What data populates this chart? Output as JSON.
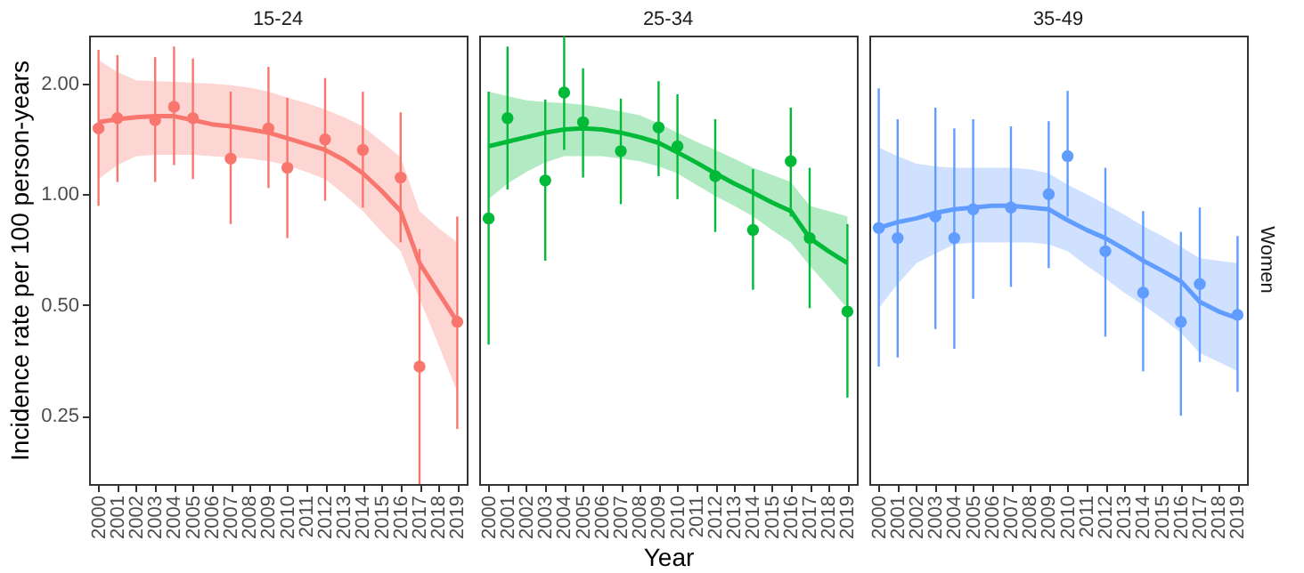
{
  "chart_data": [
    {
      "type": "scatter",
      "title": "15-24",
      "ylabel": "Incidence rate per 100 person-years",
      "log": "y",
      "categories": [
        "2000",
        "2001",
        "2002",
        "2003",
        "2004",
        "2005",
        "2006",
        "2007",
        "2008",
        "2009",
        "2010",
        "2011",
        "2012",
        "2013",
        "2014",
        "2015",
        "2016",
        "2017",
        "2018",
        "2019"
      ],
      "ylim": [
        0.163,
        2.7
      ],
      "yticks": [
        0.25,
        {
          "value": 0.5,
          "label": "0.50"
        },
        {
          "value": 1,
          "label": "1.00"
        },
        {
          "value": 2,
          "label": "2.00"
        }
      ],
      "series": [
        {
          "marker": "circle",
          "color": "#f8766d",
          "values": [
            1.51,
            1.61,
            null,
            1.59,
            1.73,
            1.61,
            null,
            1.25,
            null,
            1.51,
            1.18,
            null,
            1.41,
            null,
            1.32,
            null,
            1.11,
            0.34,
            null,
            0.45
          ],
          "errors": [
            [
              0.93,
              2.47
            ],
            [
              1.08,
              2.39
            ],
            null,
            [
              1.08,
              2.36
            ],
            [
              1.2,
              2.52
            ],
            [
              1.1,
              2.34
            ],
            null,
            [
              0.83,
              1.9
            ],
            null,
            [
              1.04,
              2.22
            ],
            [
              0.76,
              1.83
            ],
            null,
            [
              0.96,
              2.07
            ],
            null,
            [
              0.92,
              1.9
            ],
            null,
            [
              0.74,
              1.67
            ],
            [
              0.163,
              0.71
            ],
            null,
            [
              0.23,
              0.87
            ]
          ]
        },
        {
          "type": "line",
          "marker": "none",
          "color": "#f8766d",
          "values": [
            1.57,
            1.6,
            1.62,
            1.63,
            1.63,
            1.59,
            1.55,
            1.53,
            1.5,
            1.47,
            1.42,
            1.37,
            1.32,
            1.24,
            1.14,
            1.02,
            0.9,
            0.65,
            0.54,
            0.45
          ],
          "lower": [
            1.1,
            1.2,
            1.27,
            1.28,
            1.28,
            1.28,
            1.27,
            1.26,
            1.25,
            1.23,
            1.2,
            1.15,
            1.1,
            1.0,
            0.9,
            0.79,
            0.7,
            0.52,
            0.39,
            0.29
          ],
          "upper": [
            2.32,
            2.15,
            2.04,
            2.03,
            2.02,
            2.01,
            2.0,
            1.98,
            1.95,
            1.9,
            1.83,
            1.77,
            1.7,
            1.62,
            1.53,
            1.39,
            1.26,
            0.9,
            0.81,
            0.74
          ]
        }
      ]
    },
    {
      "type": "scatter",
      "title": "25-34",
      "xlabel": "Year",
      "log": "y",
      "tick_labels": "x",
      "categories": [
        "2000",
        "2001",
        "2002",
        "2003",
        "2004",
        "2005",
        "2006",
        "2007",
        "2008",
        "2009",
        "2010",
        "2011",
        "2012",
        "2013",
        "2014",
        "2015",
        "2016",
        "2017",
        "2018",
        "2019"
      ],
      "ylim": [
        0.163,
        2.7
      ],
      "series": [
        {
          "marker": "circle",
          "color": "#00ba38",
          "values": [
            0.86,
            1.61,
            null,
            1.09,
            1.89,
            1.57,
            null,
            1.31,
            null,
            1.52,
            1.35,
            null,
            1.12,
            null,
            0.8,
            null,
            1.23,
            0.76,
            null,
            0.48
          ],
          "errors": [
            [
              0.39,
              1.9
            ],
            [
              1.03,
              2.52
            ],
            null,
            [
              0.66,
              1.81
            ],
            [
              1.32,
              2.69
            ],
            [
              1.11,
              2.2
            ],
            null,
            [
              0.94,
              1.82
            ],
            null,
            [
              1.12,
              2.03
            ],
            [
              0.97,
              1.87
            ],
            null,
            [
              0.79,
              1.6
            ],
            null,
            [
              0.55,
              1.17
            ],
            null,
            [
              0.87,
              1.72
            ],
            [
              0.49,
              1.18
            ],
            null,
            [
              0.28,
              0.83
            ]
          ]
        },
        {
          "type": "line",
          "marker": "none",
          "color": "#00ba38",
          "values": [
            1.35,
            1.39,
            1.43,
            1.47,
            1.5,
            1.51,
            1.5,
            1.47,
            1.43,
            1.38,
            1.3,
            1.22,
            1.14,
            1.07,
            1.01,
            0.95,
            0.9,
            0.76,
            0.7,
            0.65
          ],
          "lower": [
            0.97,
            1.07,
            1.15,
            1.22,
            1.27,
            1.27,
            1.27,
            1.25,
            1.23,
            1.19,
            1.14,
            1.06,
            0.99,
            0.93,
            0.87,
            0.8,
            0.74,
            0.64,
            0.56,
            0.49
          ],
          "upper": [
            1.9,
            1.85,
            1.8,
            1.78,
            1.77,
            1.75,
            1.72,
            1.68,
            1.64,
            1.56,
            1.47,
            1.39,
            1.32,
            1.25,
            1.18,
            1.13,
            1.08,
            0.93,
            0.9,
            0.87
          ]
        }
      ]
    },
    {
      "type": "scatter",
      "title": "35-49",
      "annotations": [
        "Women"
      ],
      "log": "y",
      "tick_labels": "x",
      "categories": [
        "2000",
        "2001",
        "2002",
        "2003",
        "2004",
        "2005",
        "2006",
        "2007",
        "2008",
        "2009",
        "2010",
        "2011",
        "2012",
        "2013",
        "2014",
        "2015",
        "2016",
        "2017",
        "2018",
        "2019"
      ],
      "ylim": [
        0.163,
        2.7
      ],
      "series": [
        {
          "marker": "circle",
          "color": "#619cff",
          "values": [
            0.81,
            0.76,
            null,
            0.87,
            0.76,
            0.91,
            null,
            0.92,
            null,
            1.0,
            1.27,
            null,
            0.7,
            null,
            0.54,
            null,
            0.45,
            0.57,
            null,
            0.47
          ],
          "errors": [
            [
              0.34,
              1.94
            ],
            [
              0.36,
              1.6
            ],
            null,
            [
              0.43,
              1.72
            ],
            [
              0.38,
              1.51
            ],
            [
              0.52,
              1.6
            ],
            null,
            [
              0.56,
              1.53
            ],
            null,
            [
              0.63,
              1.58
            ],
            [
              0.87,
              1.91
            ],
            null,
            [
              0.41,
              1.18
            ],
            null,
            [
              0.33,
              0.9
            ],
            null,
            [
              0.25,
              0.79
            ],
            [
              0.35,
              0.92
            ],
            null,
            [
              0.29,
              0.77
            ]
          ]
        },
        {
          "type": "line",
          "marker": "none",
          "color": "#619cff",
          "values": [
            0.81,
            0.84,
            0.86,
            0.89,
            0.91,
            0.92,
            0.93,
            0.93,
            0.92,
            0.91,
            0.85,
            0.8,
            0.76,
            0.71,
            0.66,
            0.62,
            0.58,
            0.51,
            0.48,
            0.46
          ],
          "lower": [
            0.49,
            0.57,
            0.65,
            0.69,
            0.73,
            0.74,
            0.74,
            0.74,
            0.74,
            0.73,
            0.7,
            0.64,
            0.59,
            0.54,
            0.5,
            0.46,
            0.42,
            0.37,
            0.35,
            0.33
          ],
          "upper": [
            1.34,
            1.27,
            1.21,
            1.19,
            1.18,
            1.18,
            1.18,
            1.18,
            1.17,
            1.14,
            1.06,
            1.0,
            0.94,
            0.88,
            0.82,
            0.77,
            0.72,
            0.67,
            0.66,
            0.65
          ]
        }
      ]
    }
  ]
}
